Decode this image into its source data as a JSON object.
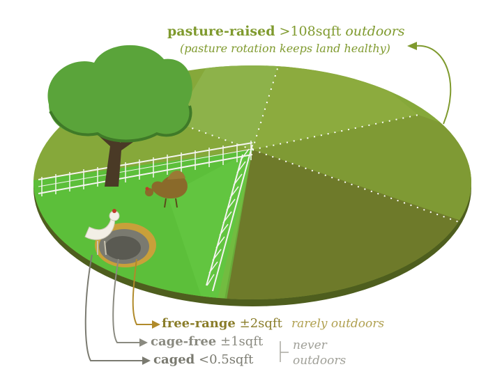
{
  "pasture": {
    "name": "pasture-raised",
    "space": ">108sqft",
    "access": "outdoors",
    "note": "(pasture rotation keeps land healthy)",
    "color": "#7f9a2e"
  },
  "free_range": {
    "name": "free-range",
    "space": "±2sqft",
    "access": "rarely outdoors",
    "color": "#8a7d2a"
  },
  "cage_free": {
    "name": "cage-free",
    "space": "±1sqft",
    "color": "#8a8a80"
  },
  "caged": {
    "name": "caged",
    "space": "<0.5sqft",
    "color": "#7a7a70"
  },
  "never_outdoors": {
    "line1": "never",
    "line2": "outdoors",
    "color": "#9a9a90"
  },
  "colors": {
    "pasture_light": "#8eb23a",
    "pasture_dark": "#6f7f2c",
    "grass_bright": "#5fc23c",
    "tree": "#5aa43a",
    "hen": "#8a6a2a",
    "white_hen": "#f2efe6",
    "pit_ring": "#c9a03a"
  }
}
